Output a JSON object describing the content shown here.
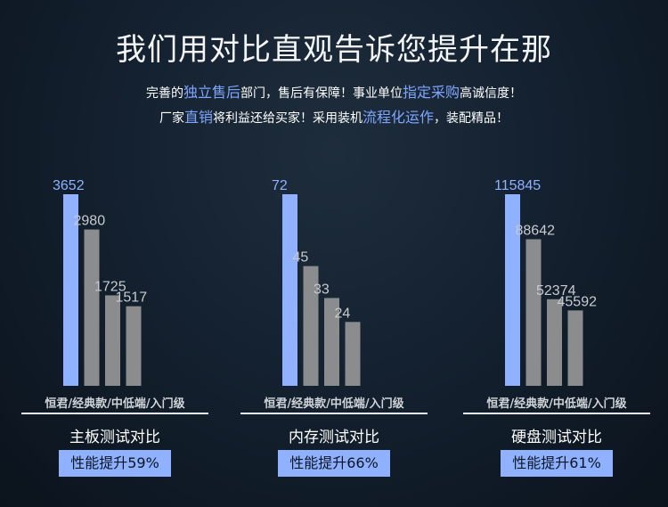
{
  "header": {
    "title": "我们用对比直观告诉您提升在那",
    "line1": [
      {
        "text": "完善的",
        "hl": false
      },
      {
        "text": "独立售后",
        "hl": true
      },
      {
        "text": "部门，售后有保障！事业单位",
        "hl": false
      },
      {
        "text": "指定采购",
        "hl": true
      },
      {
        "text": "高诚信度！",
        "hl": false
      }
    ],
    "line2": [
      {
        "text": "厂家",
        "hl": false
      },
      {
        "text": "直销",
        "hl": true
      },
      {
        "text": "将利益还给买家！采用装机",
        "hl": false
      },
      {
        "text": "流程化运作",
        "hl": true
      },
      {
        "text": "，装配精品！",
        "hl": false
      }
    ]
  },
  "colors": {
    "highlight_bar": "#8fb1ff",
    "other_bar": "#8a8c8e",
    "highlight_value": "#8fb1ff",
    "other_value": "#c8cbce"
  },
  "chart_data": [
    {
      "type": "bar",
      "title": "主板测试对比",
      "category_label": "恒君/经典款/中低端/入门级",
      "categories": [
        "恒君",
        "经典款",
        "中低端",
        "入门级"
      ],
      "values": [
        3652,
        2980,
        1725,
        1517
      ],
      "badge": "性能提升59%"
    },
    {
      "type": "bar",
      "title": "内存测试对比",
      "category_label": "恒君/经典款/中低端/入门级",
      "categories": [
        "恒君",
        "经典款",
        "中低端",
        "入门级"
      ],
      "values": [
        72,
        45,
        33,
        24
      ],
      "badge": "性能提升66%"
    },
    {
      "type": "bar",
      "title": "硬盘测试对比",
      "category_label": "恒君/经典款/中低端/入门级",
      "categories": [
        "恒君",
        "经典款",
        "中低端",
        "入门级"
      ],
      "values": [
        115845,
        88642,
        52374,
        45592
      ],
      "badge": "性能提升61%"
    }
  ]
}
